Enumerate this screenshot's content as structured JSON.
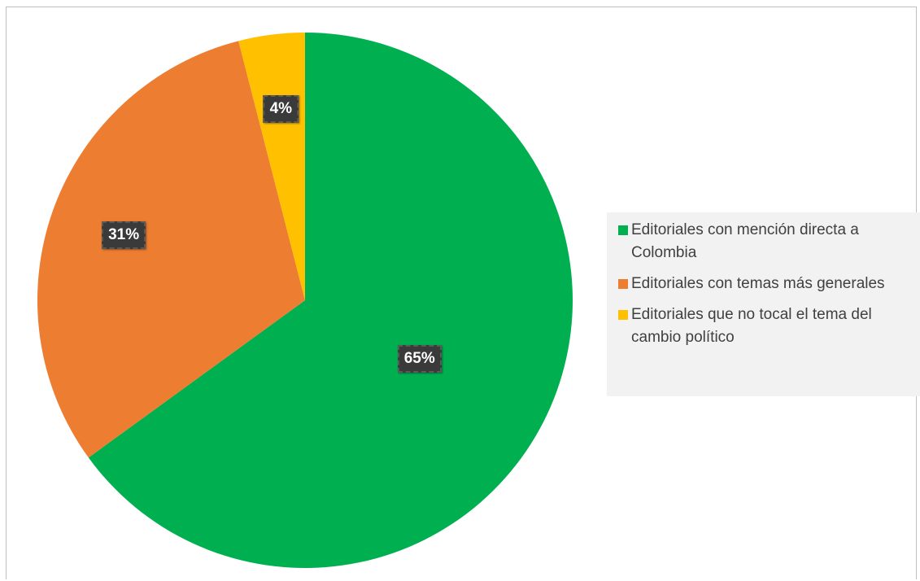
{
  "chart_data": {
    "type": "pie",
    "title": "",
    "categories": [
      "Editoriales con mención directa a Colombia",
      "Editoriales con temas más generales",
      "Editoriales que no tocal el tema del cambio político"
    ],
    "values": [
      65,
      31,
      4
    ],
    "value_labels": [
      "65%",
      "31%",
      "4%"
    ],
    "colors": [
      "#00b050",
      "#ed7d31",
      "#ffc000"
    ],
    "start_angle_deg": 0,
    "direction": "clockwise",
    "legend_position": "right"
  }
}
